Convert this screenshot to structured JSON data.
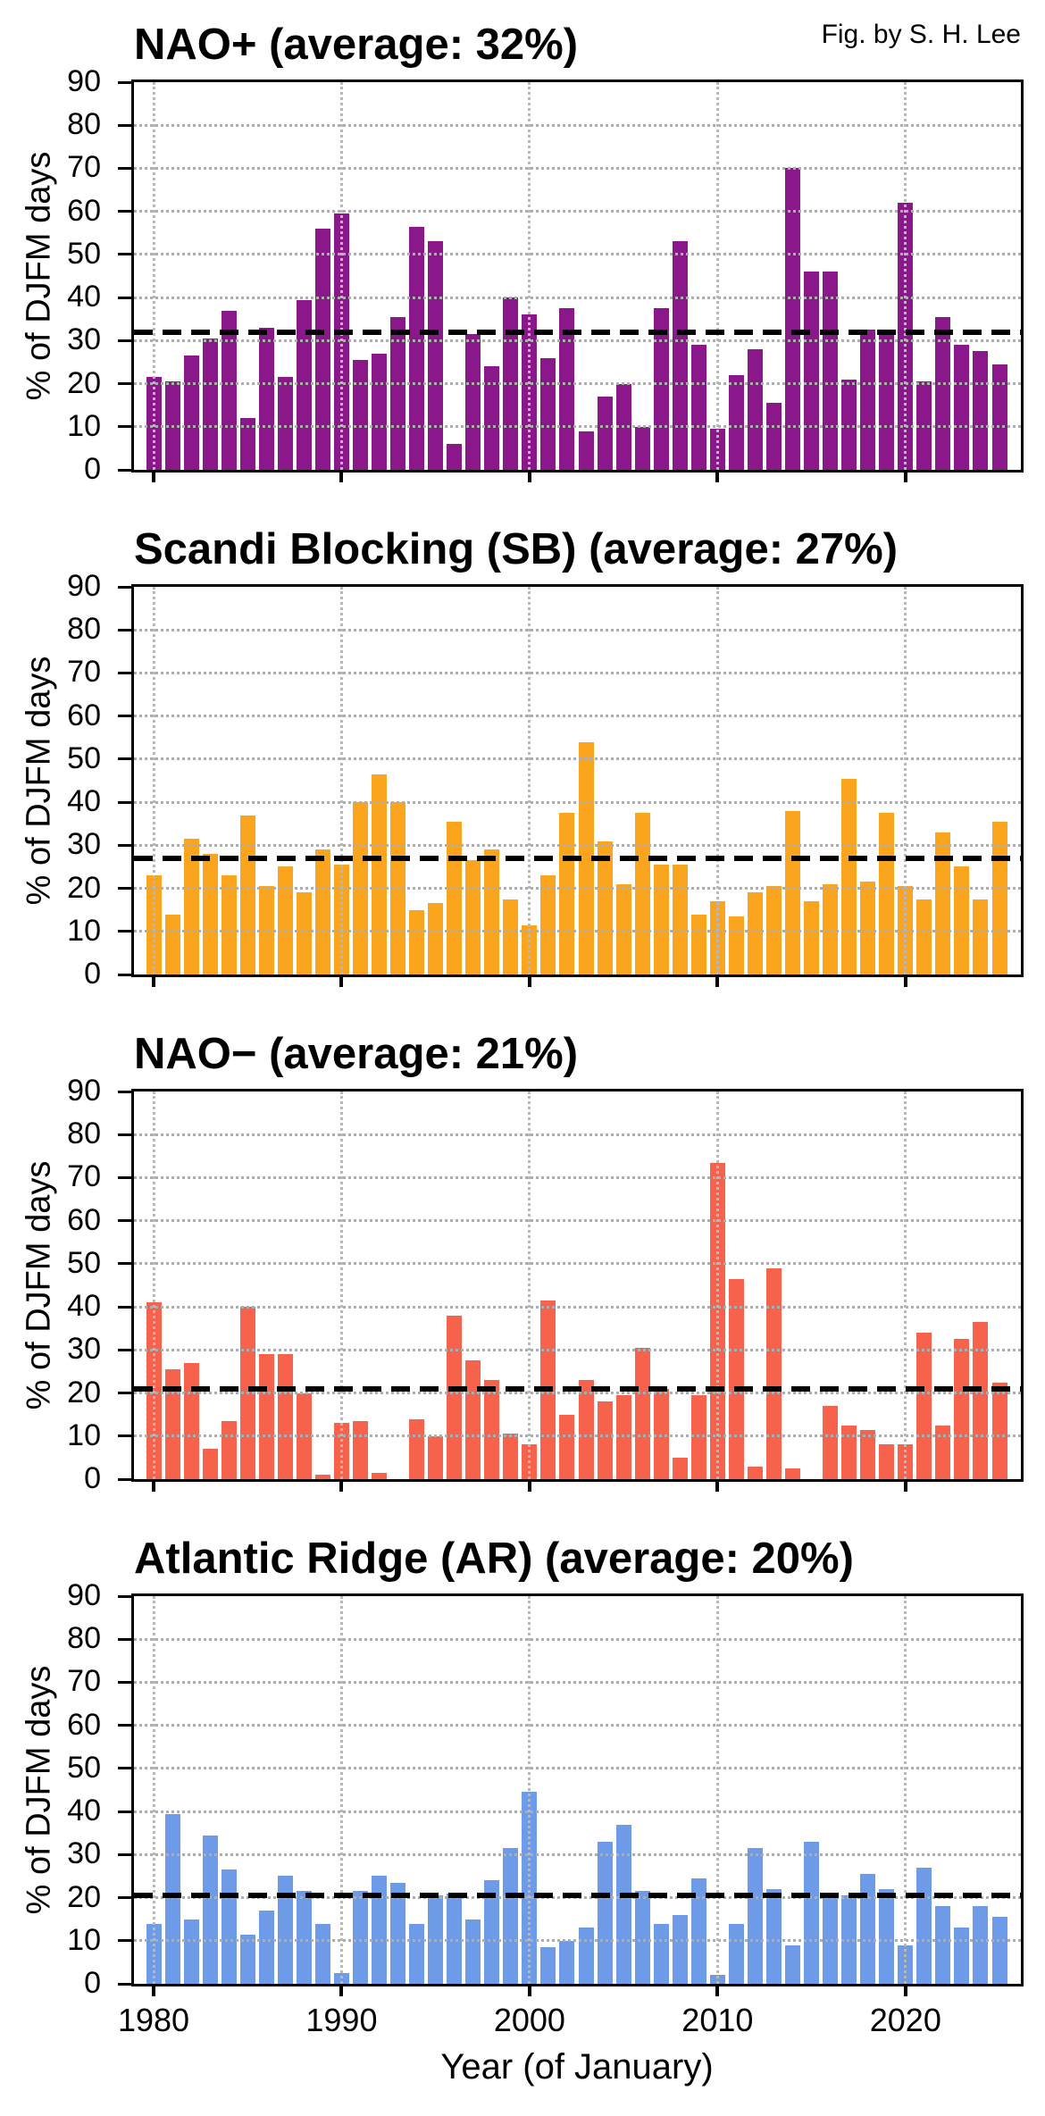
{
  "figure": {
    "credit": "Fig. by S. H. Lee",
    "xlabel": "Year (of January)",
    "ylabel": "% of DJFM days",
    "x_tick_labels": [
      "1980",
      "1990",
      "2000",
      "2010",
      "2020"
    ],
    "y_tick_labels": [
      "0",
      "10",
      "20",
      "30",
      "40",
      "50",
      "60",
      "70",
      "80",
      "90"
    ],
    "years": [
      1980,
      1981,
      1982,
      1983,
      1984,
      1985,
      1986,
      1987,
      1988,
      1989,
      1990,
      1991,
      1992,
      1993,
      1994,
      1995,
      1996,
      1997,
      1998,
      1999,
      2000,
      2001,
      2002,
      2003,
      2004,
      2005,
      2006,
      2007,
      2008,
      2009,
      2010,
      2011,
      2012,
      2013,
      2014,
      2015,
      2016,
      2017,
      2018,
      2019,
      2020,
      2021,
      2022,
      2023,
      2024,
      2025
    ],
    "x_gridline_years": [
      1980,
      1990,
      2000,
      2010,
      2020
    ],
    "y_gridline_values": [
      10,
      20,
      30,
      40,
      50,
      60,
      70,
      80
    ]
  },
  "chart_data": [
    {
      "type": "bar",
      "title": "NAO+ (average: 32%)",
      "average_pct": 32,
      "average_line_value": 32,
      "color": "#8B188B",
      "ylim": [
        0,
        90
      ],
      "x_start_year": 1980,
      "values": [
        21.5,
        20.5,
        26.5,
        30.5,
        37,
        12,
        33,
        21.5,
        39.5,
        56,
        59.5,
        25.5,
        27,
        35.5,
        56.5,
        53,
        6,
        31.5,
        24,
        40,
        36,
        26,
        37.5,
        9,
        17,
        20,
        10,
        37.5,
        53,
        29,
        9.5,
        22,
        28,
        15.5,
        70,
        46,
        46,
        21,
        32.5,
        31.5,
        62,
        20.5,
        35.5,
        29,
        27.5,
        24.5
      ]
    },
    {
      "type": "bar",
      "title": "Scandi Blocking (SB) (average: 27%)",
      "average_pct": 27,
      "average_line_value": 27,
      "color": "#FBA41D",
      "ylim": [
        0,
        90
      ],
      "x_start_year": 1980,
      "values": [
        23,
        14,
        31.5,
        28,
        23,
        37,
        20.5,
        25,
        19,
        29,
        25.5,
        40,
        46.5,
        40,
        15,
        16.5,
        35.5,
        26.5,
        29,
        17.5,
        11.5,
        23,
        37.5,
        54,
        31,
        21,
        37.5,
        25.5,
        25.5,
        14,
        17,
        13.5,
        19,
        20.5,
        38,
        17,
        21,
        45.5,
        21.5,
        37.5,
        20.5,
        17.5,
        33,
        25,
        17.5,
        35.5
      ]
    },
    {
      "type": "bar",
      "title": "NAO− (average: 21%)",
      "average_pct": 21,
      "average_line_value": 21,
      "color": "#F7624C",
      "ylim": [
        0,
        90
      ],
      "x_start_year": 1980,
      "values": [
        41,
        25.5,
        27,
        7,
        13.5,
        40,
        29,
        29,
        20,
        1,
        13,
        13.5,
        1.5,
        0,
        14,
        10,
        38,
        27.5,
        23,
        10.5,
        8,
        41.5,
        15,
        23,
        18,
        19.5,
        30.5,
        21,
        5,
        19.5,
        73.5,
        46.5,
        3,
        49,
        2.5,
        0,
        17,
        12.5,
        11.5,
        8,
        8,
        34,
        12.5,
        32.5,
        36.5,
        22.5
      ]
    },
    {
      "type": "bar",
      "title": "Atlantic Ridge (AR) (average: 20%)",
      "average_pct": 20,
      "average_line_value": 20.5,
      "color": "#6D9BE8",
      "ylim": [
        0,
        90
      ],
      "x_start_year": 1980,
      "values": [
        14,
        39.5,
        15,
        34.5,
        26.5,
        11.5,
        17,
        25,
        21.5,
        14,
        2.5,
        21.5,
        25,
        23.5,
        14,
        20.5,
        21,
        15,
        24,
        31.5,
        44.5,
        8.5,
        10,
        13,
        33,
        37,
        21.5,
        14,
        16,
        24.5,
        2,
        14,
        31.5,
        22,
        9,
        33,
        20.5,
        20.5,
        25.5,
        22,
        9,
        27,
        18,
        13,
        18,
        15.5
      ]
    }
  ]
}
